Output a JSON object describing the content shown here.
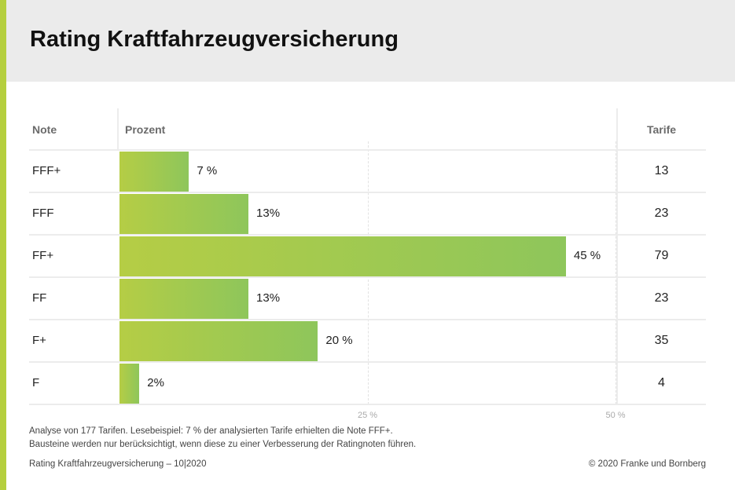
{
  "title": "Rating Kraftfahrzeugversicherung",
  "colors": {
    "accent": "#b5cf3e",
    "bar_start": "#b5cd45",
    "bar_end": "#8ec65b",
    "header_bg": "#ebebeb"
  },
  "chart_data": {
    "type": "bar",
    "orientation": "horizontal",
    "title": "Rating Kraftfahrzeugversicherung",
    "columns": {
      "note": "Note",
      "percent": "Prozent",
      "tarife": "Tarife"
    },
    "categories": [
      "FFF+",
      "FFF",
      "FF+",
      "FF",
      "F+",
      "F"
    ],
    "values": [
      7,
      13,
      45,
      13,
      20,
      2
    ],
    "value_labels": [
      "7 %",
      "13%",
      "45 %",
      "13%",
      "20 %",
      "2%"
    ],
    "tarife": [
      "13",
      "23",
      "79",
      "23",
      "35",
      "4"
    ],
    "xlim": [
      0,
      50
    ],
    "ticks": [
      {
        "value": 25,
        "label": "25 %"
      },
      {
        "value": 50,
        "label": "50 %"
      }
    ],
    "grid": "dashed vertical"
  },
  "footer": {
    "note1": "Analyse von 177 Tarifen. Lesebeispiel: 7 % der analysierten Tarife erhielten die Note FFF+.",
    "note2": "Bausteine werden nur berücksichtigt, wenn diese zu einer Verbesserung der Ratingnoten führen.",
    "source": "Rating Kraftfahrzeugversicherung – 10|2020",
    "copyright": "© 2020 Franke und Bornberg"
  }
}
